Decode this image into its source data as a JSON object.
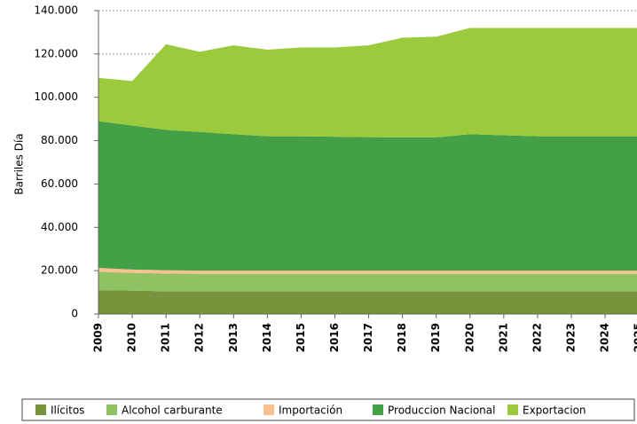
{
  "chart_data": {
    "type": "stacked_area",
    "y_label": "Barriles Día",
    "categories": [
      "2009",
      "2010",
      "2011",
      "2012",
      "2013",
      "2014",
      "2015",
      "2016",
      "2017",
      "2018",
      "2019",
      "2020",
      "2021",
      "2022",
      "2023",
      "2024",
      "2025"
    ],
    "series": [
      {
        "name": "Ilícitos",
        "color": "#77933c",
        "values": [
          11000,
          10800,
          10500,
          10500,
          10500,
          10500,
          10500,
          10500,
          10500,
          10500,
          10500,
          10500,
          10500,
          10500,
          10500,
          10500,
          10500
        ]
      },
      {
        "name": "Alcohol carburante",
        "color": "#8fc262",
        "values": [
          8500,
          8200,
          8200,
          8000,
          8000,
          8000,
          8000,
          8000,
          8000,
          8000,
          8000,
          8000,
          8000,
          8000,
          8000,
          8000,
          8000
        ]
      },
      {
        "name": "Importación",
        "color": "#fac090",
        "values": [
          1800,
          1500,
          1500,
          1500,
          1500,
          1500,
          1500,
          1500,
          1500,
          1500,
          1500,
          1500,
          1500,
          1500,
          1500,
          1500,
          1500
        ]
      },
      {
        "name": "Produccion Nacional",
        "color": "#43a047",
        "values": [
          67700,
          66500,
          64800,
          64000,
          63000,
          62000,
          62000,
          61800,
          61600,
          61500,
          61500,
          63000,
          62500,
          62000,
          62000,
          62000,
          62000
        ]
      },
      {
        "name": "Exportacion",
        "color": "#9bcb3c",
        "values": [
          20000,
          20500,
          39500,
          37000,
          41000,
          40000,
          41000,
          41200,
          42400,
          46000,
          46500,
          49000,
          49500,
          50000,
          50000,
          50000,
          50000
        ]
      }
    ],
    "ylim": [
      0,
      140000
    ],
    "yticks": [
      0,
      {
        "value": 20000,
        "label": "20.000"
      },
      {
        "value": 40000,
        "label": "40.000"
      },
      {
        "value": 60000,
        "label": "60.000"
      },
      {
        "value": 80000,
        "label": "80.000"
      },
      {
        "value": 100000,
        "label": "100.000"
      },
      {
        "value": 120000,
        "label": "120.000"
      },
      {
        "value": 140000,
        "label": "140.000"
      }
    ],
    "grid": true,
    "legend": "bottom"
  }
}
